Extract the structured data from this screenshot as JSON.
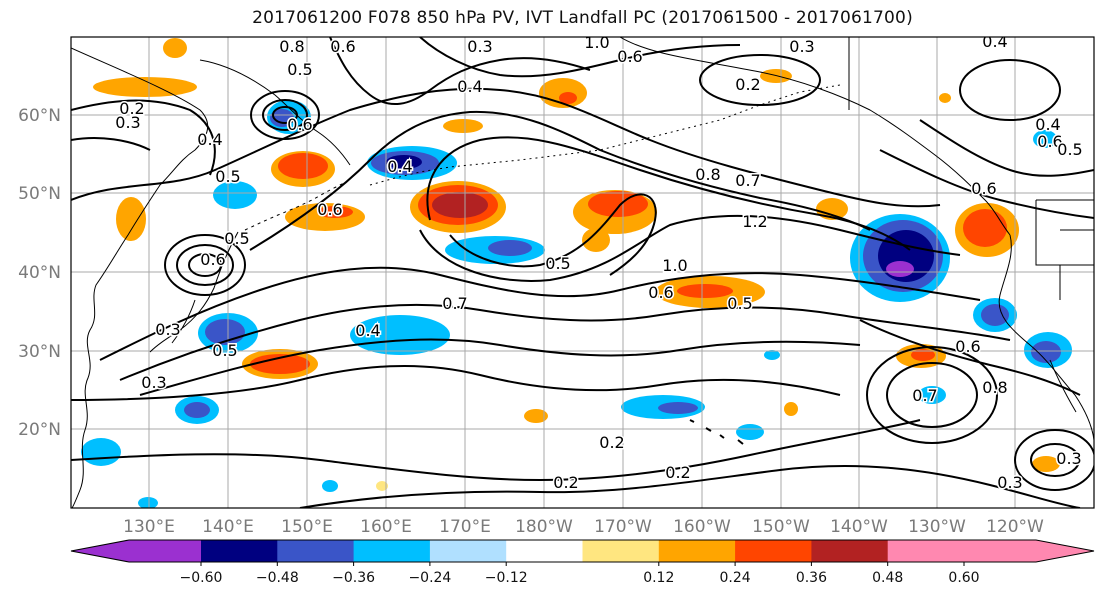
{
  "title": "2017061200 F078 850 hPa PV, IVT Landfall PC (2017061500 - 2017061700)",
  "lat_labels": [
    "60°N",
    "50°N",
    "40°N",
    "30°N",
    "20°N"
  ],
  "lon_labels": [
    "130°E",
    "140°E",
    "150°E",
    "160°E",
    "170°E",
    "180°W",
    "170°W",
    "160°W",
    "150°W",
    "140°W",
    "130°W",
    "120°W"
  ],
  "colorbar": {
    "tick_labels": [
      "−0.60",
      "−0.48",
      "−0.36",
      "−0.24",
      "−0.12",
      "0.12",
      "0.24",
      "0.36",
      "0.48",
      "0.60"
    ],
    "colors": [
      "#9b30d0",
      "#000080",
      "#3a55c8",
      "#00bfff",
      "#b0e0ff",
      "#ffffff",
      "#ffe680",
      "#ffa500",
      "#ff4500",
      "#b22222",
      "#ff88b0",
      "#ff88b0"
    ]
  },
  "contour_labels": [
    "0.8",
    "0.6",
    "0.5",
    "0.3",
    "1.0",
    "0.6",
    "0.3",
    "0.5",
    "0.4",
    "0.2",
    "0.2",
    "0.3",
    "0.4",
    "0.6",
    "0.4",
    "0.6",
    "0.5",
    "0.6",
    "0.6",
    "0.8",
    "0.7",
    "1.2",
    "1.0",
    "0.6",
    "0.5",
    "0.5",
    "0.7",
    "0.4",
    "0.4",
    "0.5",
    "0.6",
    "0.6",
    "0.7",
    "0.8",
    "0.2",
    "0.2",
    "0.2",
    "0.3",
    "0.3",
    "0.5",
    "0.3",
    "0.4",
    "0.3"
  ]
}
